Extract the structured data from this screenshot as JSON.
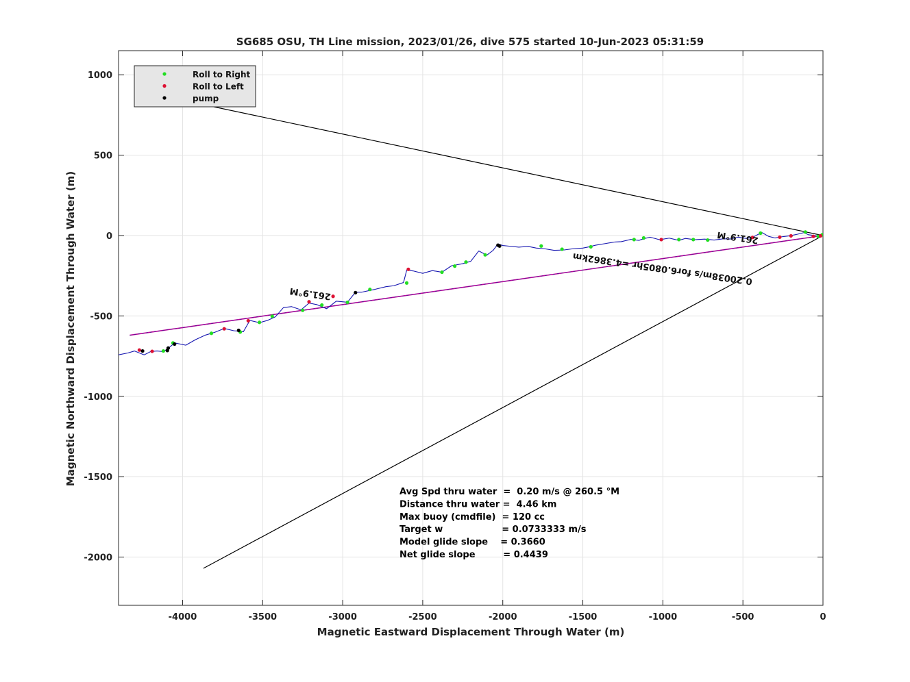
{
  "chart_data": {
    "type": "scatter",
    "title": "SG685 OSU, TH Line mission, 2023/01/26, dive 575 started 10-Jun-2023 05:31:59",
    "xlabel": "Magnetic Eastward Displacement Through Water (m)",
    "ylabel": "Magnetic Northward Displacement Through Water (m)",
    "xlim": [
      -4400,
      0
    ],
    "ylim": [
      -2300,
      1150
    ],
    "xticks": [
      -4000,
      -3500,
      -3000,
      -2500,
      -2000,
      -1500,
      -1000,
      -500,
      0
    ],
    "yticks": [
      1000,
      500,
      0,
      -500,
      -1000,
      -1500,
      -2000
    ],
    "xtick_labels": [
      "-4000",
      "-3500",
      "-3000",
      "-2500",
      "-2000",
      "-1500",
      "-1000",
      "-500",
      "0"
    ],
    "ytick_labels": [
      "1000",
      "500",
      "0",
      "-500",
      "-1000",
      "-1500",
      "-2000"
    ],
    "grid": true,
    "legend": {
      "placement": "top-left",
      "entries": [
        {
          "label": "Roll to Right",
          "color": "#22dd22"
        },
        {
          "label": "Roll to Left",
          "color": "#dd1133"
        },
        {
          "label": "pump",
          "color": "#000000"
        }
      ]
    },
    "track": {
      "color": "#1515b0",
      "points": [
        [
          0,
          0
        ],
        [
          -40,
          -2
        ],
        [
          -90,
          5
        ],
        [
          -120,
          18
        ],
        [
          -160,
          8
        ],
        [
          -210,
          -2
        ],
        [
          -260,
          -8
        ],
        [
          -300,
          -15
        ],
        [
          -340,
          -5
        ],
        [
          -380,
          18
        ],
        [
          -410,
          5
        ],
        [
          -440,
          -12
        ],
        [
          -480,
          -18
        ],
        [
          -530,
          -10
        ],
        [
          -580,
          -22
        ],
        [
          -620,
          -20
        ],
        [
          -680,
          -28
        ],
        [
          -740,
          -22
        ],
        [
          -800,
          -26
        ],
        [
          -860,
          -18
        ],
        [
          -900,
          -30
        ],
        [
          -960,
          -16
        ],
        [
          -1020,
          -26
        ],
        [
          -1080,
          -10
        ],
        [
          -1120,
          -20
        ],
        [
          -1150,
          -30
        ],
        [
          -1200,
          -24
        ],
        [
          -1260,
          -38
        ],
        [
          -1300,
          -40
        ],
        [
          -1360,
          -50
        ],
        [
          -1420,
          -60
        ],
        [
          -1460,
          -70
        ],
        [
          -1500,
          -78
        ],
        [
          -1560,
          -82
        ],
        [
          -1620,
          -90
        ],
        [
          -1680,
          -92
        ],
        [
          -1740,
          -82
        ],
        [
          -1790,
          -78
        ],
        [
          -1840,
          -68
        ],
        [
          -1900,
          -72
        ],
        [
          -1960,
          -66
        ],
        [
          -2000,
          -62
        ],
        [
          -2030,
          -52
        ],
        [
          -2060,
          -92
        ],
        [
          -2100,
          -122
        ],
        [
          -2150,
          -96
        ],
        [
          -2200,
          -160
        ],
        [
          -2250,
          -175
        ],
        [
          -2320,
          -188
        ],
        [
          -2380,
          -228
        ],
        [
          -2440,
          -218
        ],
        [
          -2500,
          -235
        ],
        [
          -2560,
          -220
        ],
        [
          -2600,
          -215
        ],
        [
          -2620,
          -292
        ],
        [
          -2680,
          -312
        ],
        [
          -2730,
          -318
        ],
        [
          -2800,
          -335
        ],
        [
          -2880,
          -352
        ],
        [
          -2920,
          -352
        ],
        [
          -2970,
          -415
        ],
        [
          -3040,
          -408
        ],
        [
          -3100,
          -455
        ],
        [
          -3160,
          -430
        ],
        [
          -3210,
          -420
        ],
        [
          -3260,
          -462
        ],
        [
          -3320,
          -442
        ],
        [
          -3370,
          -448
        ],
        [
          -3420,
          -505
        ],
        [
          -3470,
          -528
        ],
        [
          -3520,
          -542
        ],
        [
          -3580,
          -528
        ],
        [
          -3620,
          -598
        ],
        [
          -3680,
          -592
        ],
        [
          -3740,
          -578
        ],
        [
          -3800,
          -602
        ],
        [
          -3860,
          -620
        ],
        [
          -3920,
          -648
        ],
        [
          -3980,
          -682
        ],
        [
          -4050,
          -668
        ],
        [
          -4090,
          -702
        ],
        [
          -4120,
          -722
        ],
        [
          -4160,
          -718
        ],
        [
          -4200,
          -722
        ],
        [
          -4240,
          -742
        ],
        [
          -4300,
          -718
        ],
        [
          -4340,
          -730
        ],
        [
          -4400,
          -742
        ]
      ]
    },
    "roll_right_points": [
      [
        -5,
        5
      ],
      [
        -30,
        -5
      ],
      [
        -110,
        22
      ],
      [
        -390,
        15
      ],
      [
        -720,
        -28
      ],
      [
        -810,
        -25
      ],
      [
        -900,
        -25
      ],
      [
        -1120,
        -15
      ],
      [
        -1180,
        -25
      ],
      [
        -1450,
        -70
      ],
      [
        -1630,
        -85
      ],
      [
        -1760,
        -65
      ],
      [
        -2110,
        -120
      ],
      [
        -2230,
        -165
      ],
      [
        -2300,
        -190
      ],
      [
        -2380,
        -228
      ],
      [
        -2600,
        -295
      ],
      [
        -2830,
        -335
      ],
      [
        -2970,
        -415
      ],
      [
        -3130,
        -432
      ],
      [
        -3250,
        -465
      ],
      [
        -3440,
        -502
      ],
      [
        -3520,
        -540
      ],
      [
        -3640,
        -600
      ],
      [
        -3820,
        -608
      ],
      [
        -4060,
        -668
      ],
      [
        -4120,
        -718
      ]
    ],
    "roll_left_points": [
      [
        -15,
        -2
      ],
      [
        -60,
        -5
      ],
      [
        -200,
        -2
      ],
      [
        -270,
        -10
      ],
      [
        -440,
        -12
      ],
      [
        -1010,
        -25
      ],
      [
        -2590,
        -210
      ],
      [
        -3060,
        -378
      ],
      [
        -3210,
        -412
      ],
      [
        -3590,
        -530
      ],
      [
        -3740,
        -580
      ],
      [
        -4190,
        -720
      ],
      [
        -4270,
        -712
      ]
    ],
    "pump_points": [
      [
        -2030,
        -60
      ],
      [
        -2020,
        -65
      ],
      [
        -2920,
        -355
      ],
      [
        -3650,
        -590
      ],
      [
        -4050,
        -675
      ],
      [
        -4090,
        -700
      ],
      [
        -4095,
        -715
      ],
      [
        -4250,
        -718
      ]
    ],
    "lines": [
      {
        "name": "upper-bound",
        "color": "#000000",
        "points": [
          [
            -4300,
            905
          ],
          [
            0,
            0
          ]
        ]
      },
      {
        "name": "lower-bound",
        "color": "#000000",
        "points": [
          [
            -3870,
            -2070
          ],
          [
            0,
            0
          ]
        ]
      },
      {
        "name": "heading-line",
        "color": "#b8009a",
        "points": [
          [
            -4330,
            -620
          ],
          [
            0,
            0
          ]
        ]
      }
    ],
    "annotations": [
      {
        "text": "261.9°M",
        "x": -3200,
        "y": -345,
        "rotate_deg": 188.1
      },
      {
        "text": "261.9°M",
        "x": -530,
        "y": 5,
        "rotate_deg": 188.1
      },
      {
        "text": "0.20038m/s for6.0805hr =4.3862km",
        "x": -1000,
        "y": -190,
        "rotate_deg": 188.1
      }
    ],
    "stats": [
      "Avg Spd thru water  =  0.20 m/s @ 260.5 °M",
      "Distance thru water =  4.46 km",
      "Max buoy (cmdfile)  = 120 cc",
      "Target w                   = 0.0733333 m/s",
      "Model glide slope    = 0.3660",
      "Net glide slope         = 0.4439"
    ]
  }
}
